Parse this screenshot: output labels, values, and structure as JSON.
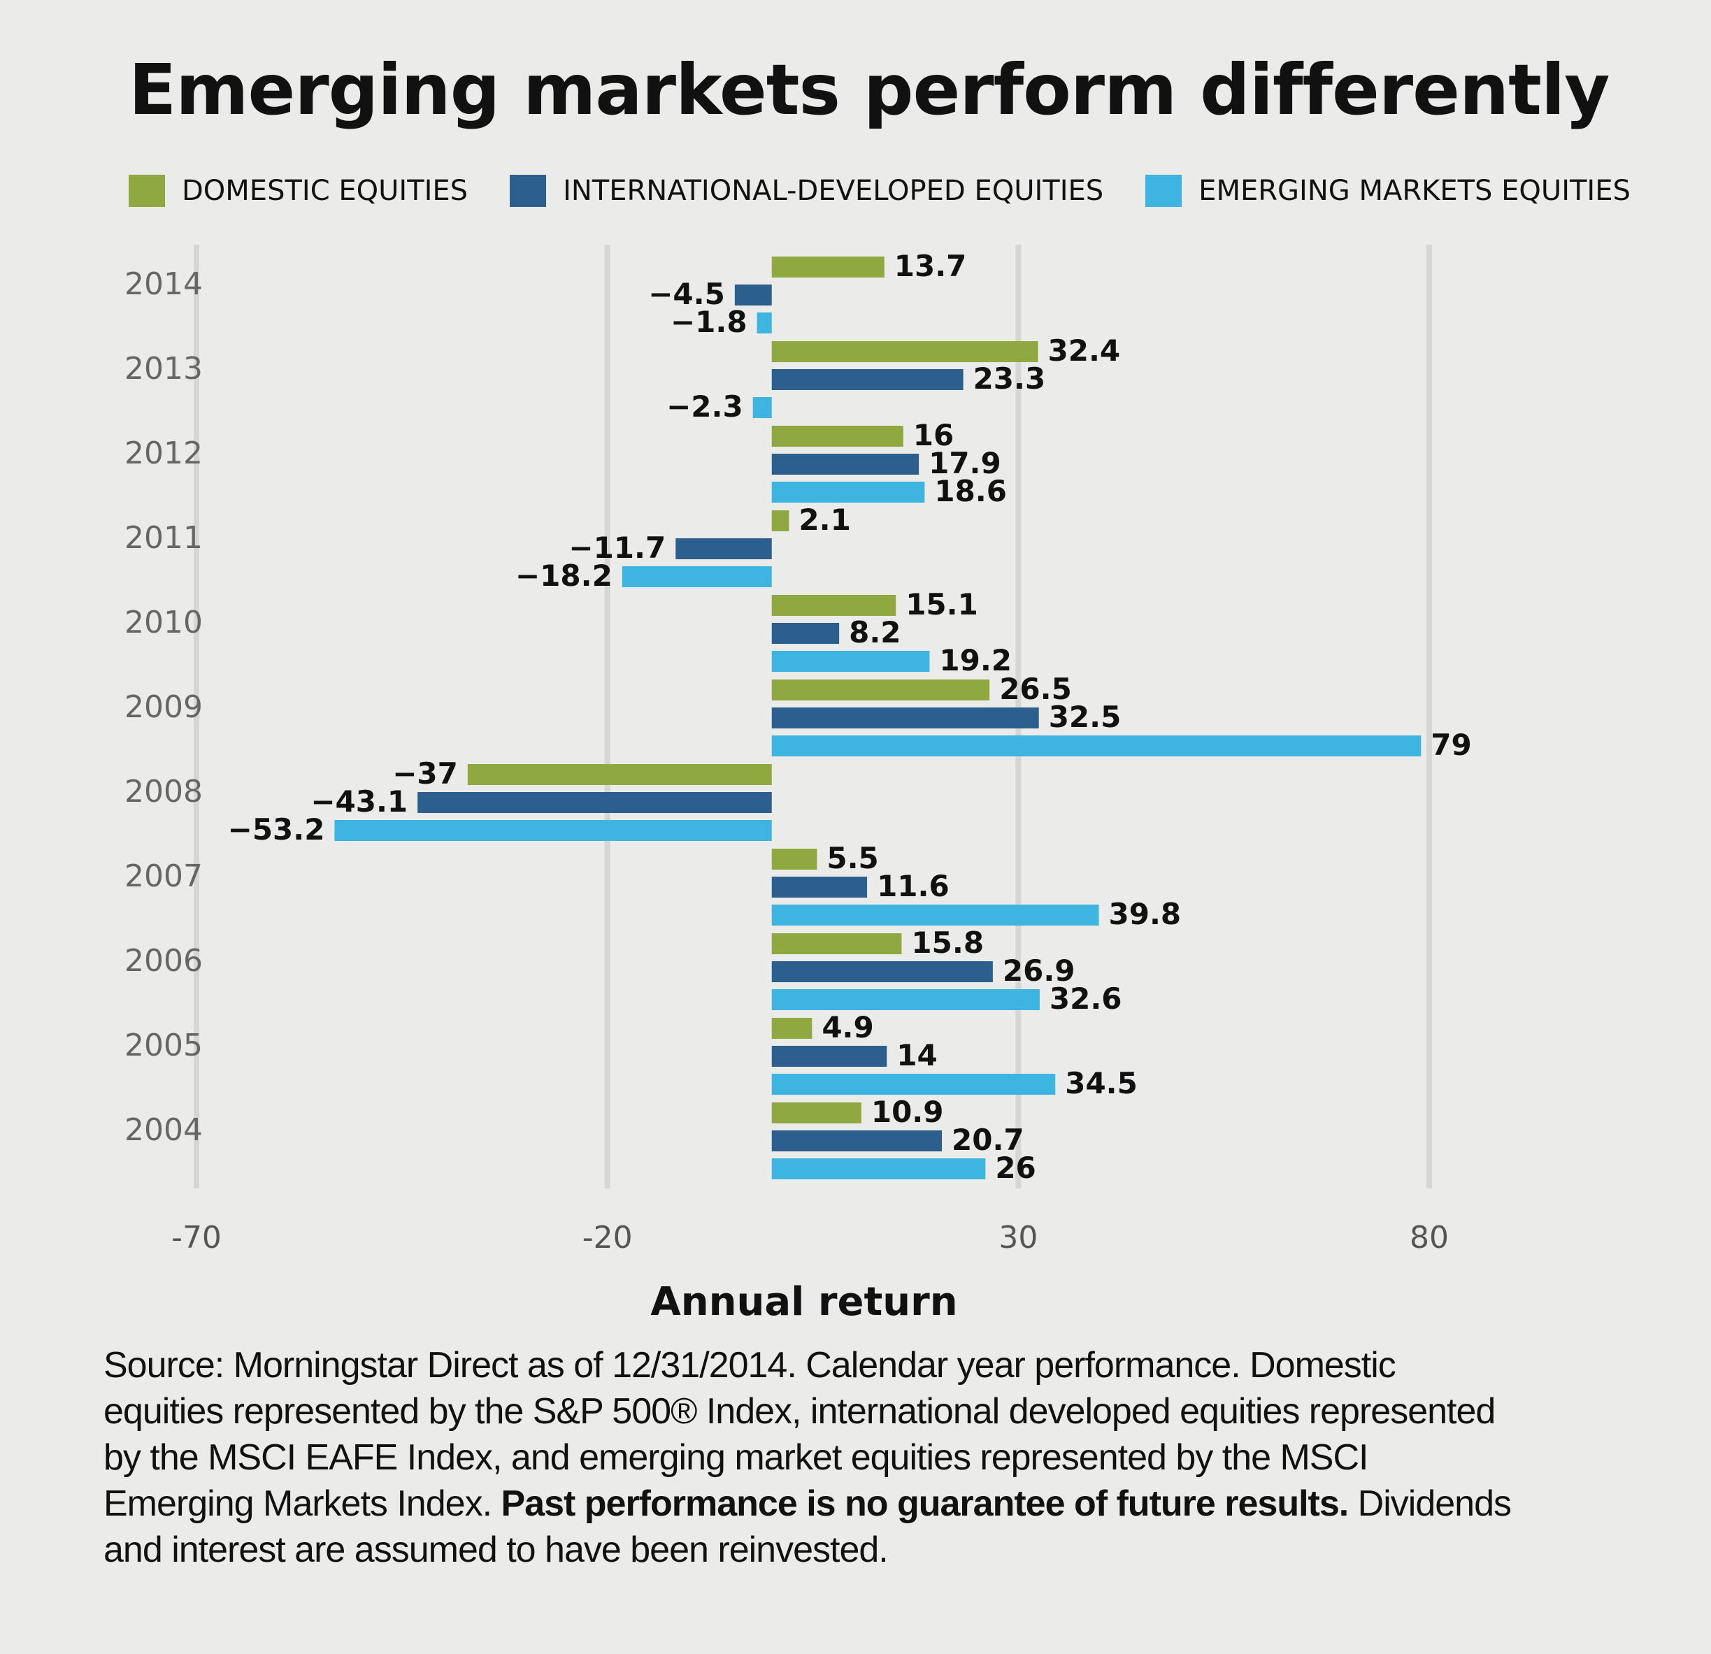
{
  "title": "Emerging markets perform differently",
  "footnote": {
    "part1": "Source: Morningstar Direct as of 12/31/2014. Calendar year performance. Domestic equities represented by the S&P 500® Index, international developed equities represented by the MSCI EAFE Index, and emerging market equities represented by the MSCI Emerging Markets Index. ",
    "bold": "Past performance is no guarantee of future results.",
    "part2": " Dividends and interest are assumed to have been reinvested."
  },
  "chart_data": {
    "type": "bar",
    "orientation": "horizontal",
    "title": "Emerging markets perform differently",
    "xlabel": "Annual return",
    "ylabel": "",
    "xlim": [
      -70,
      80
    ],
    "xticks": [
      -70,
      -20,
      30,
      80
    ],
    "grid": "vertical",
    "legend_position": "top",
    "categories": [
      "2014",
      "2013",
      "2012",
      "2011",
      "2010",
      "2009",
      "2008",
      "2007",
      "2006",
      "2005",
      "2004"
    ],
    "series": [
      {
        "name": "DOMESTIC EQUITIES",
        "color": "#8fa83f",
        "values": [
          13.7,
          32.4,
          16,
          2.1,
          15.1,
          26.5,
          -37,
          5.5,
          15.8,
          4.9,
          10.9
        ]
      },
      {
        "name": "INTERNATIONAL-DEVELOPED EQUITIES",
        "color": "#2c5f8e",
        "values": [
          -4.5,
          23.3,
          17.9,
          -11.7,
          8.2,
          32.5,
          -43.1,
          11.6,
          26.9,
          14,
          20.7
        ]
      },
      {
        "name": "EMERGING MARKETS EQUITIES",
        "color": "#3db5e0",
        "values": [
          -1.8,
          -2.3,
          18.6,
          -18.2,
          19.2,
          79,
          -53.2,
          39.8,
          32.6,
          34.5,
          26
        ]
      }
    ]
  }
}
